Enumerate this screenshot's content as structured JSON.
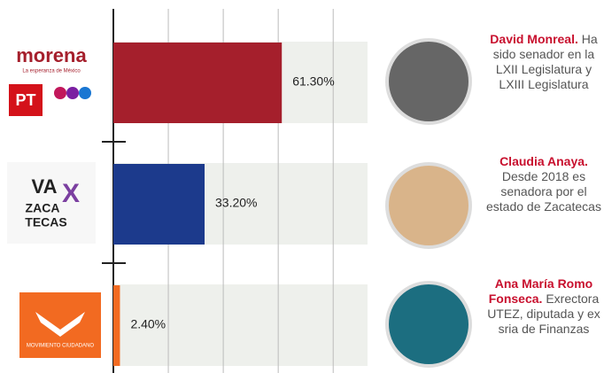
{
  "chart_data": {
    "type": "bar",
    "orientation": "horizontal",
    "categories": [
      null,
      null,
      null
    ],
    "values": [
      61.3,
      33.2,
      2.4
    ],
    "value_labels": [
      "61.30%",
      "33.20%",
      "2.40%"
    ],
    "colors": [
      "#a51f2c",
      "#1c3a8c",
      "#f26a21"
    ],
    "xlim": [
      0,
      92.5
    ],
    "xticks": [
      0,
      20,
      40,
      60,
      80
    ],
    "grid": true
  },
  "logos": [
    [
      "morena",
      "La esperanza de México",
      "PT"
    ],
    [
      "VA",
      "X",
      "ZACA",
      "TECAS"
    ],
    [
      "MOVIMIENTO CIUDADANO"
    ]
  ],
  "candidates": [
    {
      "name": "David Monreal.",
      "bio": "Ha sido senador en la LXII Legislatura y LXIII Legislatura"
    },
    {
      "name": "Claudia Anaya.",
      "bio": "Desde 2018 es senadora por el estado de Zacatecas"
    },
    {
      "name": "Ana María Romo Fonseca.",
      "bio": "Exrectora UTEZ, diputada y ex sria de Finanzas"
    }
  ]
}
